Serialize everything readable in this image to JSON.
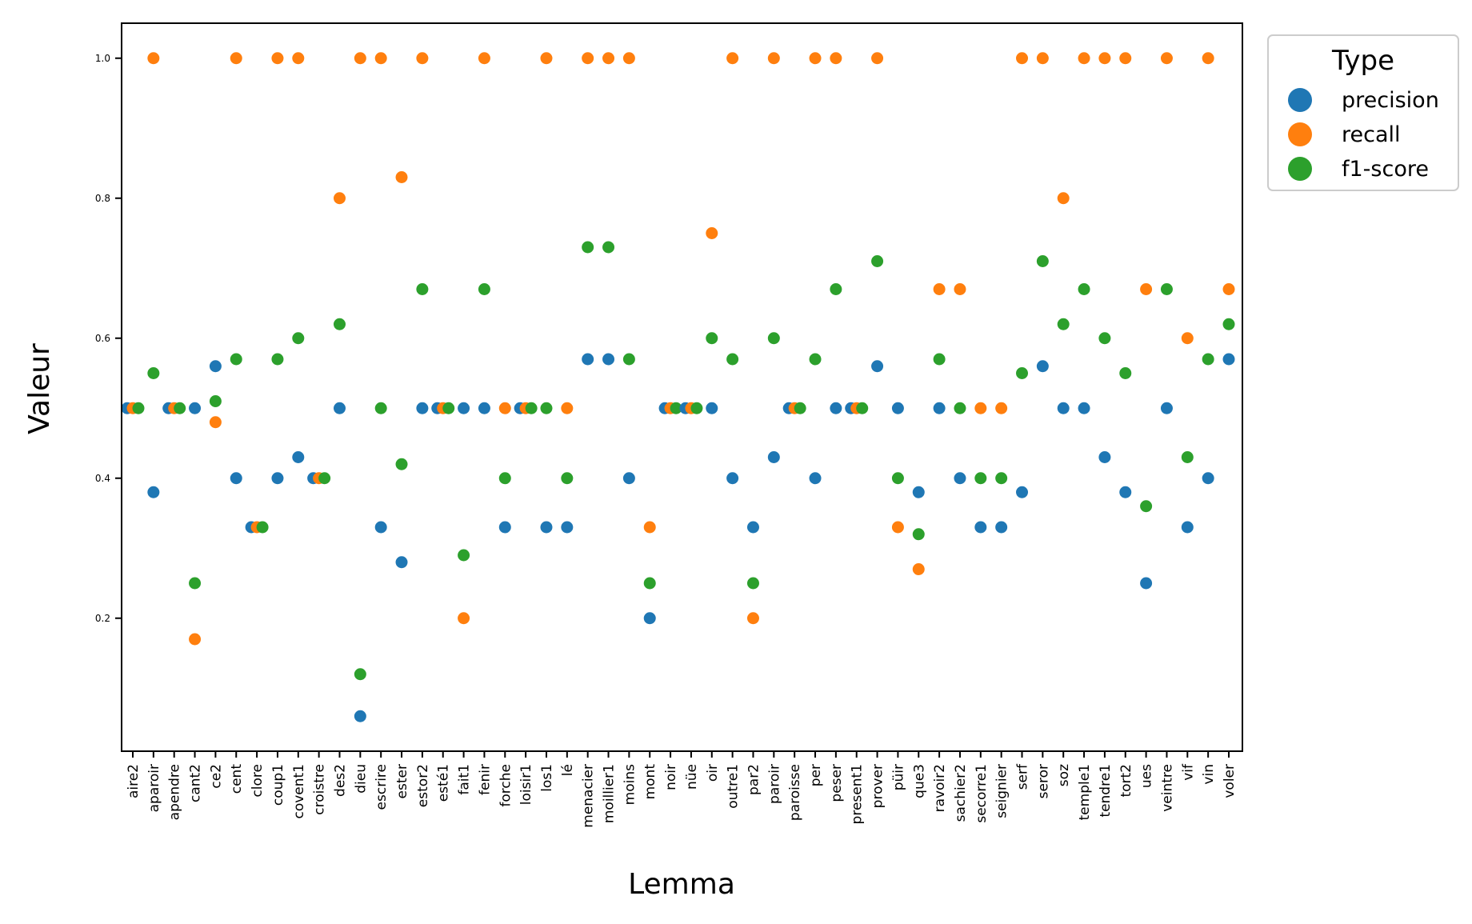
{
  "chart_data": {
    "type": "scatter",
    "title": "",
    "xlabel": "Lemma",
    "ylabel": "Valeur",
    "ylim": [
      0.01,
      1.05
    ],
    "yticks": [
      "0.2",
      "0.4",
      "0.6",
      "0.8",
      "1.0"
    ],
    "grid": false,
    "legend": {
      "title": "Type",
      "placement": "outside-top-right"
    },
    "categories": [
      "aire2",
      "aparoir",
      "apendre",
      "cant2",
      "ce2",
      "cent",
      "clore",
      "coup1",
      "covent1",
      "croistre",
      "des2",
      "dieu",
      "escrire",
      "ester",
      "estor2",
      "esté1",
      "fait1",
      "fenir",
      "forche",
      "loisir1",
      "los1",
      "lé",
      "menacier",
      "moillier1",
      "moins",
      "mont",
      "noir",
      "nüe",
      "oir",
      "outre1",
      "par2",
      "paroir",
      "paroisse",
      "per",
      "peser",
      "present1",
      "prover",
      "püir",
      "que3",
      "ravoir2",
      "sachier2",
      "secorre1",
      "seignier",
      "serf",
      "seror",
      "soz",
      "temple1",
      "tendre1",
      "tort2",
      "ues",
      "veintre",
      "vif",
      "vin",
      "voler"
    ],
    "series": [
      {
        "name": "precision",
        "color": "#1f77b4",
        "values": [
          0.5,
          0.38,
          0.5,
          0.5,
          0.56,
          0.4,
          0.33,
          0.4,
          0.43,
          0.4,
          0.5,
          0.06,
          0.33,
          0.28,
          0.5,
          0.5,
          0.5,
          0.5,
          0.33,
          0.5,
          0.33,
          0.33,
          0.57,
          0.57,
          0.4,
          0.2,
          0.5,
          0.5,
          0.5,
          0.4,
          0.33,
          0.43,
          0.5,
          0.4,
          0.5,
          0.5,
          0.56,
          0.5,
          0.38,
          0.5,
          0.4,
          0.33,
          0.33,
          0.38,
          0.56,
          0.5,
          0.5,
          0.43,
          0.38,
          0.25,
          0.5,
          0.33,
          0.4,
          0.57
        ]
      },
      {
        "name": "recall",
        "color": "#ff7f0e",
        "values": [
          0.5,
          1.0,
          0.5,
          0.17,
          0.48,
          1.0,
          0.33,
          1.0,
          1.0,
          0.4,
          0.8,
          1.0,
          1.0,
          0.83,
          1.0,
          0.5,
          0.2,
          1.0,
          0.5,
          0.5,
          1.0,
          0.5,
          1.0,
          1.0,
          1.0,
          0.33,
          0.5,
          0.5,
          0.75,
          1.0,
          0.2,
          1.0,
          0.5,
          1.0,
          1.0,
          0.5,
          1.0,
          0.33,
          0.27,
          0.67,
          0.67,
          0.5,
          0.5,
          1.0,
          1.0,
          0.8,
          1.0,
          1.0,
          1.0,
          0.67,
          1.0,
          0.6,
          1.0,
          0.67
        ]
      },
      {
        "name": "f1-score",
        "color": "#2ca02c",
        "values": [
          0.5,
          0.55,
          0.5,
          0.25,
          0.51,
          0.57,
          0.33,
          0.57,
          0.6,
          0.4,
          0.62,
          0.12,
          0.5,
          0.42,
          0.67,
          0.5,
          0.29,
          0.67,
          0.4,
          0.5,
          0.5,
          0.4,
          0.73,
          0.73,
          0.57,
          0.25,
          0.5,
          0.5,
          0.6,
          0.57,
          0.25,
          0.6,
          0.5,
          0.57,
          0.67,
          0.5,
          0.71,
          0.4,
          0.32,
          0.57,
          0.5,
          0.4,
          0.4,
          0.55,
          0.71,
          0.62,
          0.67,
          0.6,
          0.55,
          0.36,
          0.67,
          0.43,
          0.57,
          0.62
        ]
      }
    ]
  }
}
